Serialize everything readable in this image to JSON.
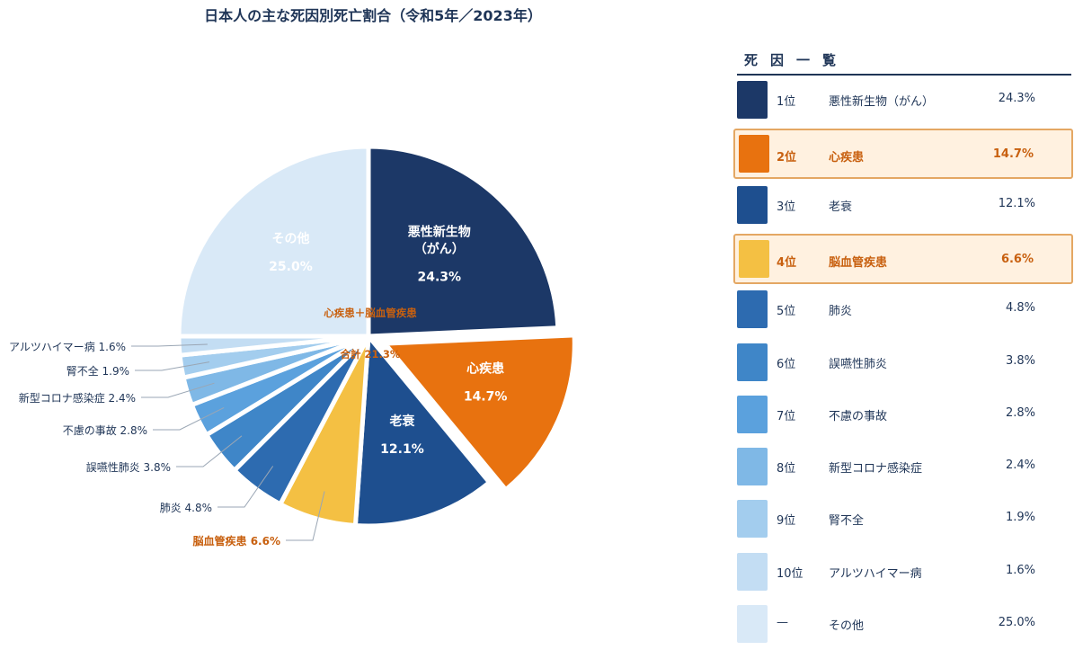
{
  "title": "日本人の主な死因別死亡割合（令和5年／2023年）",
  "legend_title": "死因一覧",
  "colors": {
    "navy": "#1f3557",
    "orange": "#c8600f",
    "highlight_bg": "#fff1e0",
    "highlight_border": "#e4a763"
  },
  "chart_data": {
    "type": "pie",
    "title": "日本人の主な死因別死亡割合（令和5年／2023年）",
    "annotation": [
      "心疾患＋脳血管疾患",
      "合計 21.3%"
    ],
    "slices": [
      {
        "rank": "1位",
        "label": "悪性新生物（がん）",
        "value": 24.3,
        "pct": "24.3%",
        "color": "#1c3867",
        "inner": [
          "悪性新生物",
          "（がん）"
        ],
        "highlight": false
      },
      {
        "rank": "2位",
        "label": "心疾患",
        "value": 14.7,
        "pct": "14.7%",
        "color": "#e8720f",
        "inner": [
          "心疾患"
        ],
        "highlight": true
      },
      {
        "rank": "3位",
        "label": "老衰",
        "value": 12.1,
        "pct": "12.1%",
        "color": "#1e4f8f",
        "inner": [
          "老衰"
        ],
        "highlight": false
      },
      {
        "rank": "4位",
        "label": "脳血管疾患",
        "value": 6.6,
        "pct": "6.6%",
        "color": "#f4c043",
        "outer": "脳血管疾患 6.6%",
        "highlight": true
      },
      {
        "rank": "5位",
        "label": "肺炎",
        "value": 4.8,
        "pct": "4.8%",
        "color": "#2d6bb0",
        "outer": "肺炎 4.8%",
        "highlight": false
      },
      {
        "rank": "6位",
        "label": "誤嚥性肺炎",
        "value": 3.8,
        "pct": "3.8%",
        "color": "#3f86c8",
        "outer": "誤嚥性肺炎 3.8%",
        "highlight": false
      },
      {
        "rank": "7位",
        "label": "不慮の事故",
        "value": 2.8,
        "pct": "2.8%",
        "color": "#5ba1dd",
        "outer": "不慮の事故 2.8%",
        "highlight": false
      },
      {
        "rank": "8位",
        "label": "新型コロナ感染症",
        "value": 2.4,
        "pct": "2.4%",
        "color": "#7fb8e6",
        "outer": "新型コロナ感染症 2.4%",
        "highlight": false
      },
      {
        "rank": "9位",
        "label": "腎不全",
        "value": 1.9,
        "pct": "1.9%",
        "color": "#a3cdee",
        "outer": "腎不全 1.9%",
        "highlight": false
      },
      {
        "rank": "10位",
        "label": "アルツハイマー病",
        "value": 1.6,
        "pct": "1.6%",
        "color": "#c3ddf3",
        "outer": "アルツハイマー病 1.6%",
        "highlight": false
      },
      {
        "rank": "—",
        "label": "その他",
        "value": 25.0,
        "pct": "25.0%",
        "color": "#d9e9f7",
        "inner": [
          "その他"
        ],
        "highlight": false
      }
    ]
  }
}
